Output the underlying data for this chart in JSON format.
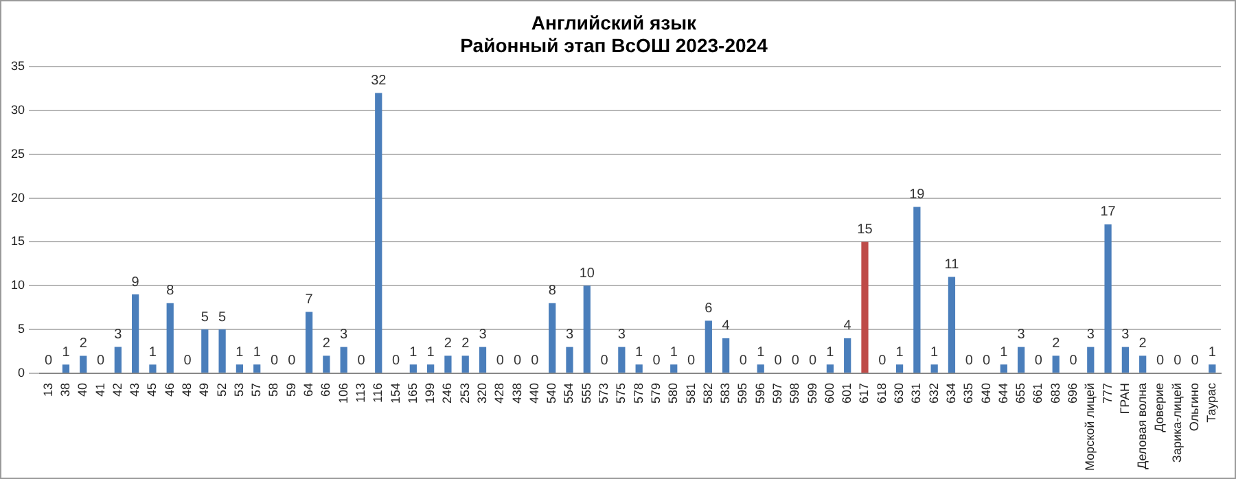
{
  "chart_data": {
    "type": "bar",
    "title": "Английский язык",
    "subtitle": "Районный этап ВсОШ 2023-2024",
    "categories": [
      "13",
      "38",
      "40",
      "41",
      "42",
      "43",
      "45",
      "46",
      "48",
      "49",
      "52",
      "53",
      "57",
      "58",
      "59",
      "64",
      "66",
      "106",
      "113",
      "116",
      "154",
      "165",
      "199",
      "246",
      "253",
      "320",
      "428",
      "438",
      "440",
      "540",
      "554",
      "555",
      "573",
      "575",
      "578",
      "579",
      "580",
      "581",
      "582",
      "583",
      "595",
      "596",
      "597",
      "598",
      "599",
      "600",
      "601",
      "617",
      "618",
      "630",
      "631",
      "632",
      "634",
      "635",
      "640",
      "644",
      "655",
      "661",
      "683",
      "696",
      "Морской лицей",
      "777",
      "ГРАН",
      "Деловая волна",
      "Доверие",
      "Зарика-лицей",
      "Ольгино",
      "Таурас"
    ],
    "values": [
      0,
      1,
      2,
      0,
      3,
      9,
      1,
      8,
      0,
      5,
      5,
      1,
      1,
      0,
      0,
      7,
      2,
      3,
      0,
      32,
      0,
      1,
      1,
      2,
      2,
      3,
      0,
      0,
      0,
      8,
      3,
      10,
      0,
      3,
      1,
      0,
      1,
      0,
      6,
      4,
      0,
      1,
      0,
      0,
      0,
      1,
      4,
      15,
      0,
      1,
      19,
      1,
      11,
      0,
      0,
      1,
      3,
      0,
      2,
      0,
      3,
      17,
      3,
      2,
      0,
      0,
      0,
      1
    ],
    "colors": [
      "#4a7ebb",
      "#4a7ebb",
      "#4a7ebb",
      "#4a7ebb",
      "#4a7ebb",
      "#4a7ebb",
      "#4a7ebb",
      "#4a7ebb",
      "#4a7ebb",
      "#4a7ebb",
      "#4a7ebb",
      "#4a7ebb",
      "#4a7ebb",
      "#4a7ebb",
      "#4a7ebb",
      "#4a7ebb",
      "#4a7ebb",
      "#4a7ebb",
      "#4a7ebb",
      "#4a7ebb",
      "#4a7ebb",
      "#4a7ebb",
      "#4a7ebb",
      "#4a7ebb",
      "#4a7ebb",
      "#4a7ebb",
      "#4a7ebb",
      "#4a7ebb",
      "#4a7ebb",
      "#4a7ebb",
      "#4a7ebb",
      "#4a7ebb",
      "#4a7ebb",
      "#4a7ebb",
      "#4a7ebb",
      "#4a7ebb",
      "#4a7ebb",
      "#4a7ebb",
      "#4a7ebb",
      "#4a7ebb",
      "#4a7ebb",
      "#4a7ebb",
      "#4a7ebb",
      "#4a7ebb",
      "#4a7ebb",
      "#4a7ebb",
      "#4a7ebb",
      "#be4b48",
      "#4a7ebb",
      "#4a7ebb",
      "#4a7ebb",
      "#4a7ebb",
      "#4a7ebb",
      "#4a7ebb",
      "#4a7ebb",
      "#4a7ebb",
      "#4a7ebb",
      "#4a7ebb",
      "#4a7ebb",
      "#4a7ebb",
      "#4a7ebb",
      "#4a7ebb",
      "#4a7ebb",
      "#4a7ebb",
      "#4a7ebb",
      "#4a7ebb",
      "#4a7ebb",
      "#4a7ebb"
    ],
    "ylim": [
      0,
      35
    ],
    "yticks": [
      0,
      5,
      10,
      15,
      20,
      25,
      30,
      35
    ],
    "grid": "y",
    "legend": false,
    "data_labels": true
  }
}
